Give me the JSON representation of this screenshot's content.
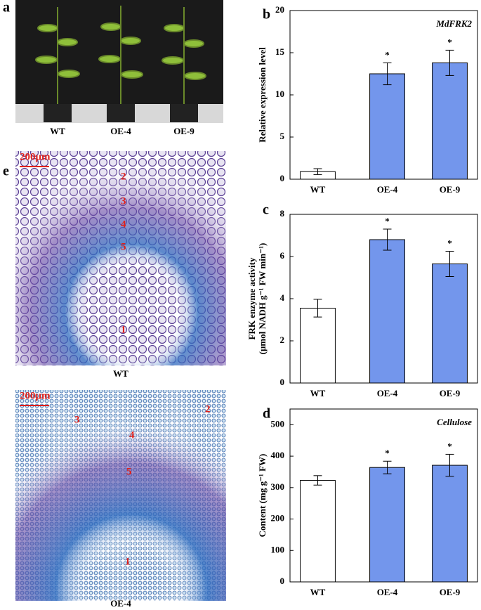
{
  "figure": {
    "panel_labels": [
      "a",
      "b",
      "c",
      "d",
      "e"
    ],
    "photo": {
      "labels": [
        "WT",
        "OE-4",
        "OE-9"
      ]
    },
    "micrographs": [
      {
        "scale": "200μm",
        "labels": [
          "2",
          "3",
          "4",
          "5",
          "1"
        ],
        "caption": "WT"
      },
      {
        "scale": "200μm",
        "labels": [
          "3",
          "4",
          "2",
          "5",
          "1"
        ],
        "caption": "OE-4"
      }
    ]
  },
  "chart_data": [
    {
      "type": "bar",
      "title": "MdFRK2",
      "y_label": [
        "Relative expression level"
      ],
      "categories": [
        "WT",
        "OE-4",
        "OE-9"
      ],
      "values": [
        0.9,
        12.5,
        13.8
      ],
      "errors": [
        0.35,
        1.3,
        1.5
      ],
      "significance": [
        null,
        "*",
        "*"
      ],
      "colors": [
        "#ffffff",
        "#7396ec",
        "#7396ec"
      ],
      "ylim": [
        0,
        20
      ],
      "yticks": [
        0,
        5,
        10,
        15,
        20
      ]
    },
    {
      "type": "bar",
      "y_label": [
        "FRK enzyme activity",
        "(μmol NADH g⁻¹ FW min⁻¹)"
      ],
      "categories": [
        "WT",
        "OE-4",
        "OE-9"
      ],
      "values": [
        3.55,
        6.8,
        5.65
      ],
      "errors": [
        0.42,
        0.5,
        0.6
      ],
      "significance": [
        null,
        "*",
        "*"
      ],
      "colors": [
        "#ffffff",
        "#7396ec",
        "#7396ec"
      ],
      "ylim": [
        0,
        8
      ],
      "yticks": [
        0,
        2,
        4,
        6,
        8
      ]
    },
    {
      "type": "bar",
      "title": "Cellulose",
      "y_label": [
        "Content (mg g⁻¹ FW)"
      ],
      "categories": [
        "WT",
        "OE-4",
        "OE-9"
      ],
      "values": [
        323,
        364,
        371
      ],
      "errors": [
        15,
        20,
        35
      ],
      "significance": [
        null,
        "*",
        "*"
      ],
      "colors": [
        "#ffffff",
        "#7396ec",
        "#7396ec"
      ],
      "ylim": [
        0,
        550
      ],
      "yticks": [
        0,
        100,
        200,
        300,
        400,
        500
      ]
    }
  ]
}
